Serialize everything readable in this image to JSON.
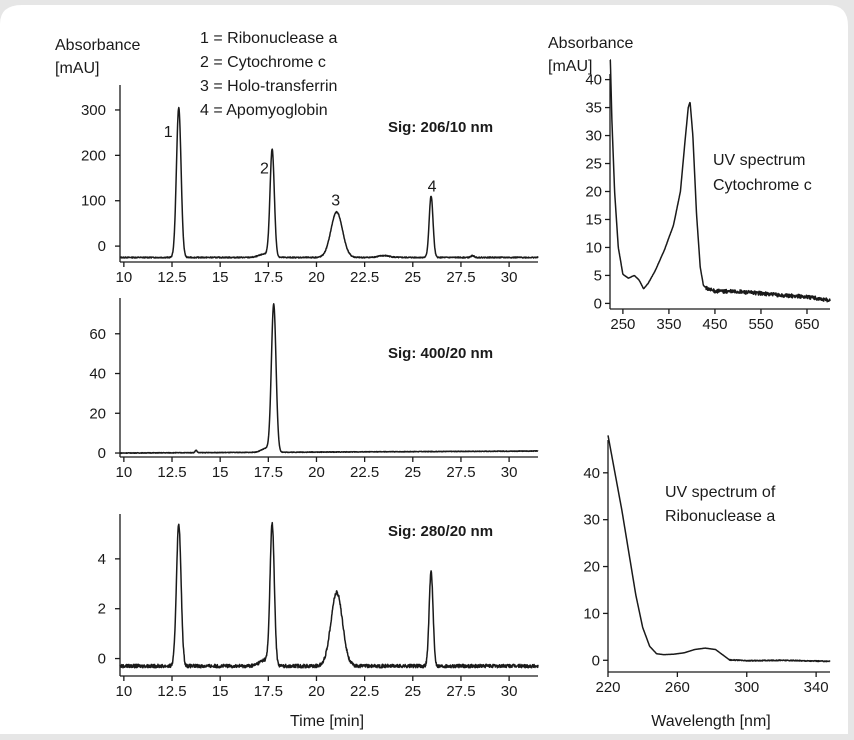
{
  "figure": {
    "background": "#e6e6e6",
    "panel_color": "#ffffff",
    "line_color": "#1a1a1a",
    "legend": [
      "1 = Ribonuclease a",
      "2 = Cytochrome c",
      "3 = Holo-transferrin",
      "4 = Apomyoglobin"
    ]
  },
  "chart_data": [
    {
      "id": "chrom206",
      "type": "line",
      "ylabel": [
        "Absorbance",
        "[mAU]"
      ],
      "xlabel": "",
      "annotation": "Sig: 206/10 nm",
      "xlim": [
        9.8,
        31.5
      ],
      "ylim": [
        -35,
        355
      ],
      "xticks": [
        10,
        12.5,
        15,
        17.5,
        20,
        22.5,
        25,
        27.5,
        30
      ],
      "xtick_labels": [
        "10",
        "12.5",
        "15",
        "17.5",
        "20",
        "22.5",
        "25",
        "27.5",
        "30"
      ],
      "yticks": [
        0,
        100,
        200,
        300
      ],
      "ytick_labels": [
        "0",
        "100",
        "200",
        "300"
      ],
      "baseline": -25,
      "noise": 1.2,
      "peak_labels": [
        {
          "text": "1",
          "x": 12.3,
          "y": 240
        },
        {
          "text": "2",
          "x": 17.3,
          "y": 160
        },
        {
          "text": "3",
          "x": 21.0,
          "y": 90
        },
        {
          "text": "4",
          "x": 26.0,
          "y": 120
        }
      ],
      "series": [
        {
          "peaks": [
            {
              "x": 12.85,
              "height": 330,
              "width": 0.12
            },
            {
              "x": 17.7,
              "height": 235,
              "width": 0.11
            },
            {
              "x": 17.35,
              "height": 8,
              "width": 0.3
            },
            {
              "x": 21.05,
              "height": 100,
              "width": 0.3
            },
            {
              "x": 23.5,
              "height": 4,
              "width": 0.3
            },
            {
              "x": 25.95,
              "height": 135,
              "width": 0.1
            },
            {
              "x": 28.1,
              "height": 4,
              "width": 0.08
            }
          ]
        }
      ]
    },
    {
      "id": "chrom400",
      "type": "line",
      "annotation": "Sig: 400/20 nm",
      "xlim": [
        9.8,
        31.5
      ],
      "ylim": [
        -2,
        78
      ],
      "xticks": [
        10,
        12.5,
        15,
        17.5,
        20,
        22.5,
        25,
        27.5,
        30
      ],
      "xtick_labels": [
        "10",
        "12.5",
        "15",
        "17.5",
        "20",
        "22.5",
        "25",
        "27.5",
        "30"
      ],
      "yticks": [
        0,
        20,
        40,
        60
      ],
      "ytick_labels": [
        "0",
        "20",
        "40",
        "60"
      ],
      "baseline": 0,
      "baseline_end": 1,
      "noise": 0.15,
      "series": [
        {
          "peaks": [
            {
              "x": 13.75,
              "height": 1.2,
              "width": 0.05
            },
            {
              "x": 17.78,
              "height": 74,
              "width": 0.12
            },
            {
              "x": 17.4,
              "height": 2,
              "width": 0.25
            }
          ]
        }
      ]
    },
    {
      "id": "chrom280",
      "type": "line",
      "xlabel": "Time [min]",
      "annotation": "Sig: 280/20 nm",
      "xlim": [
        9.8,
        31.5
      ],
      "ylim": [
        -0.7,
        5.8
      ],
      "xticks": [
        10,
        12.5,
        15,
        17.5,
        20,
        22.5,
        25,
        27.5,
        30
      ],
      "xtick_labels": [
        "10",
        "12.5",
        "15",
        "17.5",
        "20",
        "22.5",
        "25",
        "27.5",
        "30"
      ],
      "yticks": [
        0,
        2,
        4
      ],
      "ytick_labels": [
        "0",
        "2",
        "4"
      ],
      "baseline": -0.3,
      "noise": 0.07,
      "series": [
        {
          "peaks": [
            {
              "x": 12.85,
              "height": 5.7,
              "width": 0.12
            },
            {
              "x": 17.7,
              "height": 5.6,
              "width": 0.11
            },
            {
              "x": 17.35,
              "height": 0.25,
              "width": 0.3
            },
            {
              "x": 21.05,
              "height": 2.95,
              "width": 0.3
            },
            {
              "x": 25.95,
              "height": 3.8,
              "width": 0.1
            }
          ]
        }
      ]
    },
    {
      "id": "spec_cyt",
      "type": "line",
      "ylabel": [
        "Absorbance",
        "[mAU]"
      ],
      "annotation": [
        "UV spectrum",
        "Cytochrome c"
      ],
      "xlim": [
        222,
        700
      ],
      "ylim": [
        -1,
        41
      ],
      "xticks": [
        250,
        350,
        450,
        550,
        650
      ],
      "xtick_labels": [
        "250",
        "350",
        "450",
        "550",
        "650"
      ],
      "yticks": [
        0,
        5,
        10,
        15,
        20,
        25,
        30,
        35,
        40
      ],
      "ytick_labels": [
        "0",
        "5",
        "10",
        "15",
        "20",
        "25",
        "30",
        "35",
        "40"
      ],
      "noise": 0.35,
      "noise_from": 430,
      "series": [
        {
          "x": [
            222,
            226,
            232,
            240,
            250,
            262,
            275,
            285,
            295,
            305,
            320,
            340,
            360,
            375,
            385,
            392,
            396,
            402,
            410,
            418,
            425,
            435,
            450,
            500,
            550,
            600,
            650,
            700
          ],
          "y": [
            46,
            33,
            20,
            10,
            5.2,
            4.5,
            5,
            4.2,
            2.6,
            3.6,
            5.8,
            9.5,
            14,
            20,
            29,
            35,
            36,
            30,
            16,
            6.5,
            3.2,
            2.5,
            2.2,
            2.1,
            1.8,
            1.4,
            1.2,
            0.5
          ]
        }
      ]
    },
    {
      "id": "spec_rib",
      "type": "line",
      "xlabel": "Wavelength [nm]",
      "annotation": [
        "UV spectrum of",
        "Ribonuclease a"
      ],
      "xlim": [
        220,
        348
      ],
      "ylim": [
        -2.5,
        47
      ],
      "xticks": [
        220,
        260,
        300,
        340
      ],
      "xtick_labels": [
        "220",
        "260",
        "300",
        "340"
      ],
      "yticks": [
        0,
        10,
        20,
        30,
        40
      ],
      "ytick_labels": [
        "0",
        "10",
        "20",
        "30",
        "40"
      ],
      "noise": 0.1,
      "noise_from": 290,
      "series": [
        {
          "x": [
            220,
            224,
            228,
            232,
            236,
            240,
            244,
            248,
            252,
            258,
            264,
            270,
            276,
            282,
            286,
            290,
            300,
            320,
            345
          ],
          "y": [
            48,
            40,
            32,
            23,
            14,
            7,
            3,
            1.4,
            1.2,
            1.3,
            1.6,
            2.3,
            2.6,
            2.3,
            1.2,
            0.1,
            -0.1,
            0,
            -0.2
          ]
        }
      ]
    }
  ]
}
